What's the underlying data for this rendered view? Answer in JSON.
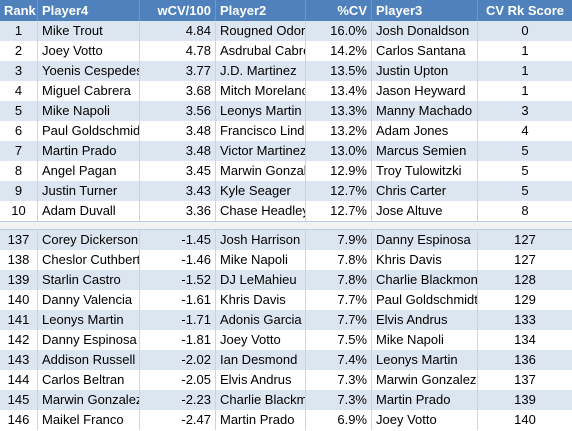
{
  "table": {
    "header": [
      "Rank",
      "Player4",
      "wCV/100",
      "Player2",
      "%CV",
      "Player3",
      "CV Rk Score"
    ],
    "sections": [
      {
        "rows": [
          [
            "1",
            "Mike Trout",
            "4.84",
            "Rougned Odor",
            "16.0%",
            "Josh Donaldson",
            "0"
          ],
          [
            "2",
            "Joey Votto",
            "4.78",
            "Asdrubal Cabrera",
            "14.2%",
            "Carlos Santana",
            "1"
          ],
          [
            "3",
            "Yoenis Cespedes",
            "3.77",
            "J.D. Martinez",
            "13.5%",
            "Justin Upton",
            "1"
          ],
          [
            "4",
            "Miguel Cabrera",
            "3.68",
            "Mitch Moreland",
            "13.4%",
            "Jason Heyward",
            "1"
          ],
          [
            "5",
            "Mike Napoli",
            "3.56",
            "Leonys Martin",
            "13.3%",
            "Manny Machado",
            "3"
          ],
          [
            "6",
            "Paul Goldschmidt",
            "3.48",
            "Francisco Lindor",
            "13.2%",
            "Adam Jones",
            "4"
          ],
          [
            "7",
            "Martin Prado",
            "3.48",
            "Victor Martinez",
            "13.0%",
            "Marcus Semien",
            "5"
          ],
          [
            "8",
            "Angel Pagan",
            "3.45",
            "Marwin Gonzalez",
            "12.9%",
            "Troy Tulowitzki",
            "5"
          ],
          [
            "9",
            "Justin Turner",
            "3.43",
            "Kyle Seager",
            "12.7%",
            "Chris Carter",
            "5"
          ],
          [
            "10",
            "Adam Duvall",
            "3.36",
            "Chase Headley",
            "12.7%",
            "Jose Altuve",
            "8"
          ]
        ]
      },
      {
        "rows": [
          [
            "137",
            "Corey Dickerson",
            "-1.45",
            "Josh Harrison",
            "7.9%",
            "Danny Espinosa",
            "127"
          ],
          [
            "138",
            "Cheslor Cuthbert",
            "-1.46",
            "Mike Napoli",
            "7.8%",
            "Khris Davis",
            "127"
          ],
          [
            "139",
            "Starlin Castro",
            "-1.52",
            "DJ LeMahieu",
            "7.8%",
            "Charlie Blackmon",
            "128"
          ],
          [
            "140",
            "Danny Valencia",
            "-1.61",
            "Khris Davis",
            "7.7%",
            "Paul Goldschmidt",
            "129"
          ],
          [
            "141",
            "Leonys Martin",
            "-1.71",
            "Adonis Garcia",
            "7.7%",
            "Elvis Andrus",
            "133"
          ],
          [
            "142",
            "Danny Espinosa",
            "-1.81",
            "Joey Votto",
            "7.5%",
            "Mike Napoli",
            "134"
          ],
          [
            "143",
            "Addison Russell",
            "-2.02",
            "Ian Desmond",
            "7.4%",
            "Leonys Martin",
            "136"
          ],
          [
            "144",
            "Carlos Beltran",
            "-2.05",
            "Elvis Andrus",
            "7.3%",
            "Marwin Gonzalez",
            "137"
          ],
          [
            "145",
            "Marwin Gonzalez",
            "-2.23",
            "Charlie Blackmon",
            "7.3%",
            "Martin Prado",
            "139"
          ],
          [
            "146",
            "Maikel Franco",
            "-2.47",
            "Martin Prado",
            "6.9%",
            "Joey Votto",
            "140"
          ]
        ]
      }
    ]
  }
}
